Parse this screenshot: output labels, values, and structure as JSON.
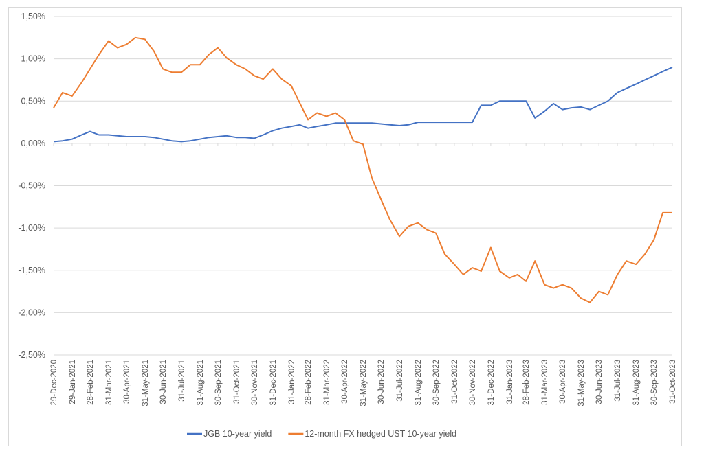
{
  "chart_data": {
    "type": "line",
    "title": "",
    "xlabel": "",
    "ylabel": "",
    "ylim": [
      -2.5,
      1.5
    ],
    "yticks": [
      "1,50%",
      "1,00%",
      "0,50%",
      "0,00%",
      "-0,50%",
      "-1,00%",
      "-1,50%",
      "-2,00%",
      "-2,50%"
    ],
    "ytick_values": [
      1.5,
      1.0,
      0.5,
      0.0,
      -0.5,
      -1.0,
      -1.5,
      -2.0,
      -2.5
    ],
    "grid": true,
    "legend_position": "bottom",
    "xtick_labels": [
      "29-Dec-2020",
      "29-Jan-2021",
      "28-Feb-2021",
      "31-Mar-2021",
      "30-Apr-2021",
      "31-May-2021",
      "30-Jun-2021",
      "31-Jul-2021",
      "31-Aug-2021",
      "30-Sep-2021",
      "31-Oct-2021",
      "30-Nov-2021",
      "31-Dec-2021",
      "31-Jan-2022",
      "28-Feb-2022",
      "31-Mar-2022",
      "30-Apr-2022",
      "31-May-2022",
      "30-Jun-2022",
      "31-Jul-2022",
      "31-Aug-2022",
      "30-Sep-2022",
      "31-Oct-2022",
      "30-Nov-2022",
      "31-Dec-2022",
      "31-Jan-2023",
      "28-Feb-2023",
      "31-Mar-2023",
      "30-Apr-2023",
      "31-May-2023",
      "30-Jun-2023",
      "31-Jul-2023",
      "31-Aug-2023",
      "30-Sep-2023",
      "31-Oct-2023"
    ],
    "xtick_dates": [
      "2020-12-29",
      "2021-01-29",
      "2021-02-28",
      "2021-03-31",
      "2021-04-30",
      "2021-05-31",
      "2021-06-30",
      "2021-07-31",
      "2021-08-31",
      "2021-09-30",
      "2021-10-31",
      "2021-11-30",
      "2021-12-31",
      "2022-01-31",
      "2022-02-28",
      "2022-03-31",
      "2022-04-30",
      "2022-05-31",
      "2022-06-30",
      "2022-07-31",
      "2022-08-31",
      "2022-09-30",
      "2022-10-31",
      "2022-11-30",
      "2022-12-31",
      "2023-01-31",
      "2023-02-28",
      "2023-03-31",
      "2023-04-30",
      "2023-05-31",
      "2023-06-30",
      "2023-07-31",
      "2023-08-31",
      "2023-09-30",
      "2023-10-31"
    ],
    "x": [
      "2020-12-29",
      "2021-01-13",
      "2021-01-29",
      "2021-02-14",
      "2021-02-28",
      "2021-03-15",
      "2021-03-31",
      "2021-04-15",
      "2021-04-30",
      "2021-05-15",
      "2021-05-31",
      "2021-06-15",
      "2021-06-30",
      "2021-07-15",
      "2021-07-31",
      "2021-08-15",
      "2021-08-31",
      "2021-09-15",
      "2021-09-30",
      "2021-10-15",
      "2021-10-31",
      "2021-11-15",
      "2021-11-30",
      "2021-12-15",
      "2021-12-31",
      "2022-01-15",
      "2022-01-31",
      "2022-02-14",
      "2022-02-28",
      "2022-03-15",
      "2022-03-31",
      "2022-04-15",
      "2022-04-30",
      "2022-05-15",
      "2022-05-31",
      "2022-06-15",
      "2022-06-30",
      "2022-07-15",
      "2022-07-31",
      "2022-08-15",
      "2022-08-31",
      "2022-09-15",
      "2022-09-30",
      "2022-10-15",
      "2022-10-31",
      "2022-11-15",
      "2022-11-30",
      "2022-12-15",
      "2022-12-31",
      "2023-01-15",
      "2023-01-31",
      "2023-02-14",
      "2023-02-28",
      "2023-03-15",
      "2023-03-31",
      "2023-04-15",
      "2023-04-30",
      "2023-05-15",
      "2023-05-31",
      "2023-06-15",
      "2023-06-30",
      "2023-07-15",
      "2023-07-31",
      "2023-08-15",
      "2023-08-31",
      "2023-09-15",
      "2023-09-30",
      "2023-10-15",
      "2023-10-31"
    ],
    "series": [
      {
        "name": "JGB 10-year yield",
        "color": "#4472c4",
        "values": [
          0.02,
          0.03,
          0.05,
          0.1,
          0.14,
          0.1,
          0.1,
          0.09,
          0.08,
          0.08,
          0.08,
          0.07,
          0.05,
          0.03,
          0.02,
          0.03,
          0.05,
          0.07,
          0.08,
          0.09,
          0.07,
          0.07,
          0.06,
          0.1,
          0.15,
          0.18,
          0.2,
          0.22,
          0.18,
          0.2,
          0.22,
          0.24,
          0.24,
          0.24,
          0.24,
          0.24,
          0.23,
          0.22,
          0.21,
          0.22,
          0.25,
          0.25,
          0.25,
          0.25,
          0.25,
          0.25,
          0.25,
          0.45,
          0.45,
          0.5,
          0.5,
          0.5,
          0.5,
          0.3,
          0.38,
          0.47,
          0.4,
          0.42,
          0.43,
          0.4,
          0.45,
          0.5,
          0.6,
          0.65,
          0.7,
          0.75,
          0.8,
          0.85,
          0.9
        ]
      },
      {
        "name": "12-month FX hedged UST 10-year yield",
        "color": "#ed7d31",
        "values": [
          0.42,
          0.6,
          0.56,
          0.72,
          0.88,
          1.05,
          1.21,
          1.13,
          1.17,
          1.25,
          1.23,
          1.09,
          0.88,
          0.84,
          0.84,
          0.93,
          0.93,
          1.05,
          1.13,
          1.01,
          0.93,
          0.88,
          0.8,
          0.76,
          0.88,
          0.76,
          0.68,
          0.48,
          0.28,
          0.36,
          0.32,
          0.36,
          0.28,
          0.03,
          -0.01,
          -0.41,
          -0.66,
          -0.9,
          -1.1,
          -0.98,
          -0.94,
          -1.02,
          -1.06,
          -1.31,
          -1.43,
          -1.55,
          -1.47,
          -1.51,
          -1.23,
          -1.51,
          -1.59,
          -1.55,
          -1.63,
          -1.39,
          -1.67,
          -1.71,
          -1.67,
          -1.71,
          -1.83,
          -1.88,
          -1.75,
          -1.79,
          -1.55,
          -1.39,
          -1.43,
          -1.31,
          -1.14,
          -0.82,
          -0.82
        ]
      }
    ]
  }
}
